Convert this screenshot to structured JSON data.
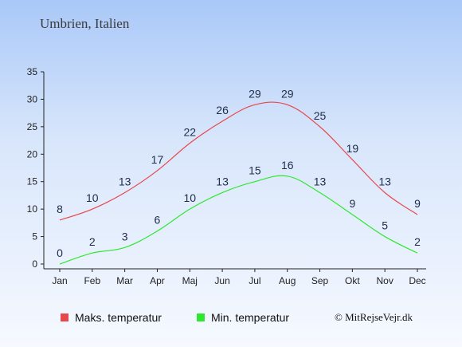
{
  "title": "Umbrien, Italien",
  "copyright": "© MitRejseVejr.dk",
  "chart_data": {
    "type": "line",
    "categories": [
      "Jan",
      "Feb",
      "Mar",
      "Apr",
      "Maj",
      "Jun",
      "Jul",
      "Aug",
      "Sep",
      "Okt",
      "Nov",
      "Dec"
    ],
    "series": [
      {
        "name": "Maks. temperatur",
        "values": [
          8,
          10,
          13,
          17,
          22,
          26,
          29,
          29,
          25,
          19,
          13,
          9
        ],
        "color": "#e8474b"
      },
      {
        "name": "Min. temperatur",
        "values": [
          0,
          2,
          3,
          6,
          10,
          13,
          15,
          16,
          13,
          9,
          5,
          2
        ],
        "color": "#2ee82e"
      }
    ],
    "ylim": [
      0,
      35
    ],
    "yticks": [
      0,
      5,
      10,
      15,
      20,
      25,
      30,
      35
    ],
    "grid": false,
    "legend": "bottom"
  }
}
